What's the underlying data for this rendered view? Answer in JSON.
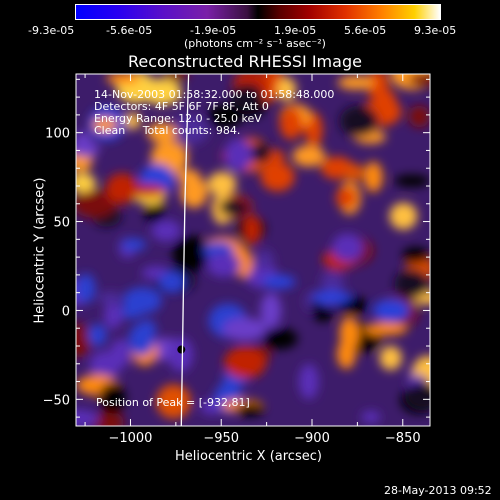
{
  "colorbar": {
    "ticks": [
      "-9.3e-05",
      "-5.6e-05",
      "-1.9e-05",
      "1.9e-05",
      "5.6e-05",
      "9.3e-05"
    ],
    "unit_label": "(photons cm⁻² s⁻¹ asec⁻²)"
  },
  "chart_data": {
    "type": "heatmap",
    "title": "Reconstructed RHESSI Image",
    "xlabel": "Heliocentric X (arcsec)",
    "ylabel": "Heliocentric Y (arcsec)",
    "xlim": [
      -1030,
      -835
    ],
    "ylim": [
      -65,
      133
    ],
    "xticks": [
      -1000,
      -950,
      -900,
      -850
    ],
    "xtick_labels": [
      "−1000",
      "−950",
      "−900",
      "−850"
    ],
    "yticks": [
      -50,
      0,
      50,
      100
    ],
    "ytick_labels": [
      "−50",
      "0",
      "50",
      "100"
    ],
    "value_range": [
      -9.3e-05,
      9.3e-05
    ],
    "info_lines": [
      "14-Nov-2003 01:58:32.000 to 01:58:48.000",
      "Detectors: 4F 5F 6F 7F 8F, Att 0",
      "Energy Range: 12.0 - 25.0 keV",
      "Clean     Total counts: 984."
    ],
    "peak_text": "Position of Peak = [-932,81]",
    "peak": [
      -932,
      81
    ],
    "limb_curve": [
      [
        -968,
        133
      ],
      [
        -970,
        60
      ],
      [
        -971,
        0
      ],
      [
        -972,
        -65
      ]
    ],
    "min_marker": [
      -972,
      -22
    ]
  },
  "footer": {
    "timestamp": "28-May-2013 09:52"
  }
}
